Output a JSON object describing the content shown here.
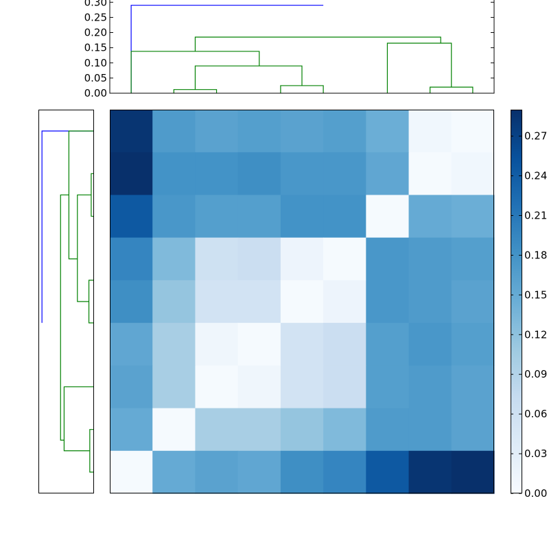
{
  "chart_data": [
    {
      "type": "dendrogram",
      "orientation": "top",
      "ylim": [
        0,
        0.3
      ],
      "yticks": [
        "0.00",
        "0.05",
        "0.10",
        "0.15",
        "0.20",
        "0.25",
        "0.30"
      ],
      "leaf_count": 9,
      "links": [
        {
          "id": "t1",
          "x": [
            1,
            5.5
          ],
          "y": [
            0,
            0.29
          ],
          "h": 0.29,
          "color": "#0000ff"
        },
        {
          "id": "t2",
          "x": [
            2.5,
            8.25
          ],
          "y": [
            0.138,
            0.165
          ],
          "h": 0.185,
          "color": "#008000"
        },
        {
          "id": "t3",
          "x": [
            1,
            4
          ],
          "y": [
            0,
            0.09
          ],
          "h": 0.138,
          "color": "#008000"
        },
        {
          "id": "t4",
          "x": [
            7,
            8.5
          ],
          "y": [
            0,
            0.02
          ],
          "h": 0.165,
          "color": "#008000"
        },
        {
          "id": "t5",
          "x": [
            2.5,
            5
          ],
          "y": [
            0.012,
            0.025
          ],
          "h": 0.09,
          "color": "#008000"
        },
        {
          "id": "t6",
          "x": [
            2,
            3
          ],
          "y": [
            0,
            0
          ],
          "h": 0.012,
          "color": "#008000"
        },
        {
          "id": "t7",
          "x": [
            4.5,
            5.5
          ],
          "y": [
            0,
            0
          ],
          "h": 0.025,
          "color": "#008000"
        },
        {
          "id": "t8",
          "x": [
            8,
            9
          ],
          "y": [
            0,
            0
          ],
          "h": 0.02,
          "color": "#008000"
        }
      ]
    },
    {
      "type": "dendrogram",
      "orientation": "left",
      "leaf_count": 9,
      "links": [
        {
          "id": "l1",
          "x": [
            1,
            5.5
          ],
          "y": [
            0,
            0.29
          ],
          "h": 0.29,
          "color": "#0000ff"
        },
        {
          "id": "l2",
          "x": [
            2.5,
            8.25
          ],
          "y": [
            0.138,
            0.165
          ],
          "h": 0.185,
          "color": "#008000"
        },
        {
          "id": "l3",
          "x": [
            1,
            4
          ],
          "y": [
            0,
            0.09
          ],
          "h": 0.138,
          "color": "#008000"
        },
        {
          "id": "l4",
          "x": [
            7,
            8.5
          ],
          "y": [
            0,
            0.02
          ],
          "h": 0.165,
          "color": "#008000"
        },
        {
          "id": "l5",
          "x": [
            2.5,
            5
          ],
          "y": [
            0.012,
            0.025
          ],
          "h": 0.09,
          "color": "#008000"
        },
        {
          "id": "l6",
          "x": [
            2,
            3
          ],
          "y": [
            0,
            0
          ],
          "h": 0.012,
          "color": "#008000"
        },
        {
          "id": "l7",
          "x": [
            4.5,
            5.5
          ],
          "y": [
            0,
            0
          ],
          "h": 0.025,
          "color": "#008000"
        },
        {
          "id": "l8",
          "x": [
            8,
            9
          ],
          "y": [
            0,
            0
          ],
          "h": 0.02,
          "color": "#008000"
        }
      ]
    },
    {
      "type": "heatmap",
      "rows": 9,
      "cols": 9,
      "values": [
        [
          0.285,
          0.17,
          0.16,
          0.165,
          0.16,
          0.165,
          0.145,
          0.01,
          0.003
        ],
        [
          0.29,
          0.18,
          0.18,
          0.185,
          0.175,
          0.175,
          0.155,
          0.003,
          0.01
        ],
        [
          0.245,
          0.175,
          0.165,
          0.165,
          0.18,
          0.18,
          0.003,
          0.15,
          0.145
        ],
        [
          0.195,
          0.13,
          0.06,
          0.065,
          0.015,
          0.003,
          0.175,
          0.17,
          0.165
        ],
        [
          0.185,
          0.115,
          0.055,
          0.055,
          0.003,
          0.015,
          0.175,
          0.17,
          0.16
        ],
        [
          0.155,
          0.1,
          0.012,
          0.003,
          0.055,
          0.065,
          0.165,
          0.175,
          0.165
        ],
        [
          0.16,
          0.1,
          0.003,
          0.012,
          0.055,
          0.065,
          0.165,
          0.17,
          0.16
        ],
        [
          0.15,
          0.003,
          0.1,
          0.1,
          0.115,
          0.13,
          0.17,
          0.17,
          0.16
        ],
        [
          0.003,
          0.15,
          0.16,
          0.155,
          0.185,
          0.195,
          0.245,
          0.285,
          0.29
        ]
      ],
      "vmin": 0,
      "vmax": 0.29,
      "colormap": "Blues",
      "colorbar_ticks": [
        "0.00",
        "0.03",
        "0.06",
        "0.09",
        "0.12",
        "0.15",
        "0.18",
        "0.21",
        "0.24",
        "0.27"
      ]
    }
  ]
}
